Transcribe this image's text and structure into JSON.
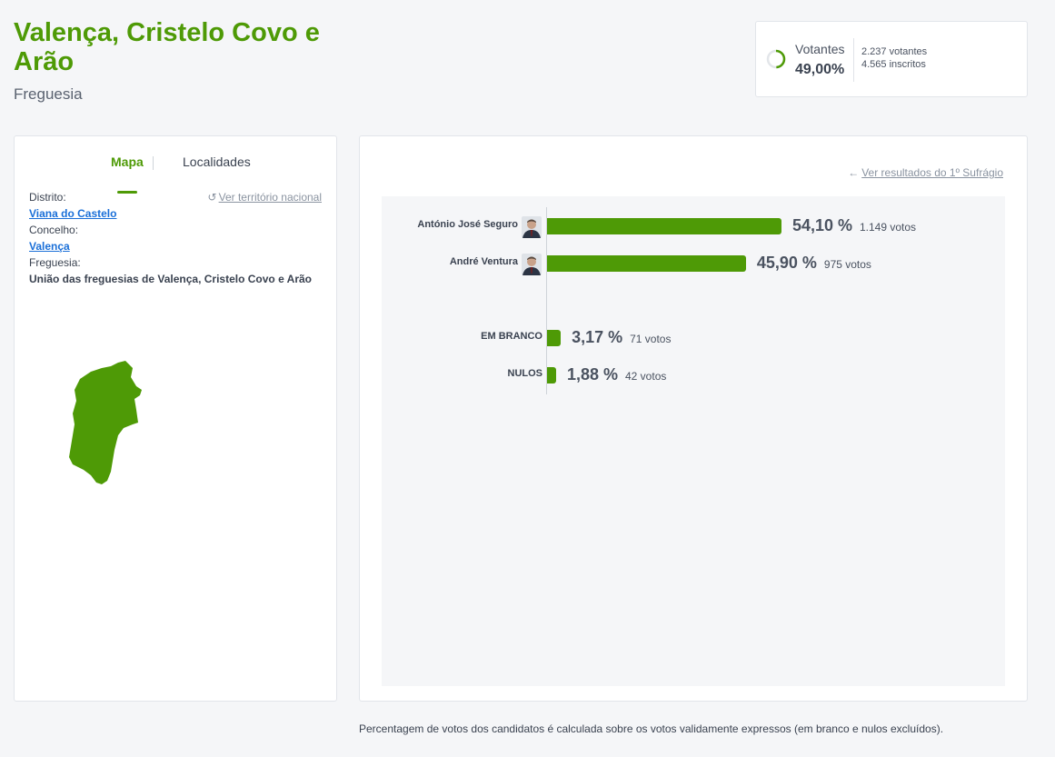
{
  "header": {
    "title": "Valença, Cristelo Covo e Arão",
    "subtitle": "Freguesia"
  },
  "turnout": {
    "label": "Votantes",
    "percentage": "49,00%",
    "percentage_value": 49.0,
    "voters": "2.237 votantes",
    "registered": "4.565 inscritos",
    "ring_color": "#4e9a06"
  },
  "left_panel": {
    "tabs": [
      {
        "label": "Mapa",
        "active": true
      },
      {
        "label": "Localidades",
        "active": false
      }
    ],
    "back_link": "Ver território nacional",
    "district_label": "Distrito:",
    "district_value": "Viana do Castelo",
    "municipality_label": "Concelho:",
    "municipality_value": "Valença",
    "parish_label": "Freguesia:",
    "parish_value": "União das freguesias de Valença, Cristelo Covo e Arão",
    "map_color": "#4e9a06"
  },
  "results": {
    "first_round_link": "Ver resultados do 1º Sufrágio",
    "bar_color": "#4e9a06",
    "candidates": [
      {
        "name": "António José Seguro",
        "percentage": "54,10 %",
        "value": 54.1,
        "votes": "1.149 votos",
        "photo": "candidate-photo"
      },
      {
        "name": "André Ventura",
        "percentage": "45,90 %",
        "value": 45.9,
        "votes": "975 votos",
        "photo": "candidate-photo"
      }
    ],
    "others": [
      {
        "name": "EM BRANCO",
        "percentage": "3,17 %",
        "value": 3.17,
        "votes": "71 votos"
      },
      {
        "name": "NULOS",
        "percentage": "1,88 %",
        "value": 1.88,
        "votes": "42 votos"
      }
    ]
  },
  "footnote": "Percentagem de votos dos candidatos é calculada sobre os votos validamente expressos (em branco e nulos excluídos)."
}
